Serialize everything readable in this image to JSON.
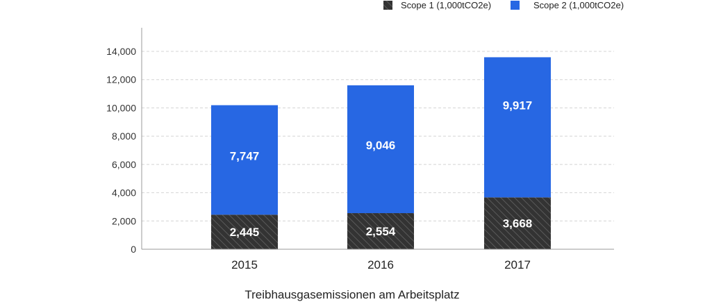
{
  "chart_data": {
    "type": "bar",
    "stacked": true,
    "categories": [
      "2015",
      "2016",
      "2017"
    ],
    "series": [
      {
        "name": "Scope 1 (1,000tCO2e)",
        "values": [
          2445,
          2554,
          3668
        ],
        "value_labels": [
          "2,445",
          "2,554",
          "3,668"
        ],
        "color": "#333333",
        "pattern": "diagonal-hatch"
      },
      {
        "name": "Scope 2 (1,000tCO2e)",
        "values": [
          7747,
          9046,
          9917
        ],
        "value_labels": [
          "7,747",
          "9,046",
          "9,917"
        ],
        "color": "#2767e3"
      }
    ],
    "xlabel": "Treibhausgasemissionen am Arbeitsplatz",
    "ylabel": "",
    "ylim": [
      0,
      15000
    ],
    "yticks": [
      0,
      2000,
      4000,
      6000,
      8000,
      10000,
      12000,
      14000
    ],
    "ytick_labels": [
      "0",
      "2,000",
      "4,000",
      "6,000",
      "8,000",
      "10,000",
      "12,000",
      "14,000"
    ],
    "grid": "horizontal-dashed",
    "legend_position": "top-right"
  }
}
